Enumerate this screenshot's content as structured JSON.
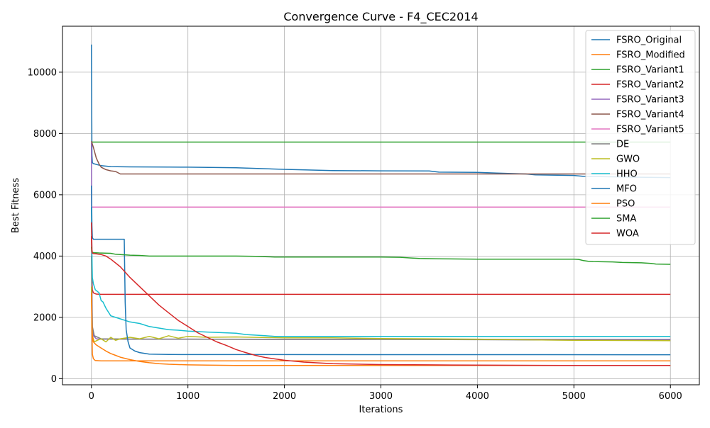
{
  "chart_data": {
    "type": "line",
    "title": "Convergence Curve - F4_CEC2014",
    "xlabel": "Iterations",
    "ylabel": "Best Fitness",
    "xlim": [
      -300,
      6300
    ],
    "ylim": [
      -200,
      11500
    ],
    "xticks": [
      0,
      1000,
      2000,
      3000,
      4000,
      5000,
      6000
    ],
    "yticks": [
      0,
      2000,
      4000,
      6000,
      8000,
      10000
    ],
    "grid": true,
    "legend_position": "top-right",
    "series": [
      {
        "name": "FSRO_Original",
        "color": "#1f77b4",
        "x": [
          0,
          5,
          10,
          20,
          50,
          100,
          200,
          400,
          800,
          1000,
          1500,
          2000,
          2500,
          3000,
          3500,
          3600,
          4000,
          4200,
          4500,
          4600,
          5000,
          5100,
          5500,
          6000
        ],
        "y": [
          10900,
          7300,
          7050,
          7020,
          6990,
          6950,
          6920,
          6910,
          6905,
          6900,
          6880,
          6830,
          6790,
          6780,
          6775,
          6740,
          6730,
          6710,
          6680,
          6650,
          6630,
          6600,
          6580,
          6560
        ]
      },
      {
        "name": "FSRO_Modified",
        "color": "#ff7f0e",
        "x": [
          0,
          5,
          10,
          20,
          40,
          100,
          200,
          6000
        ],
        "y": [
          3000,
          1500,
          800,
          650,
          590,
          580,
          580,
          580
        ]
      },
      {
        "name": "FSRO_Variant1",
        "color": "#2ca02c",
        "x": [
          0,
          6000
        ],
        "y": [
          7720,
          7720
        ]
      },
      {
        "name": "FSRO_Variant2",
        "color": "#d62728",
        "x": [
          0,
          5,
          10,
          20,
          50,
          100,
          6000
        ],
        "y": [
          4650,
          3300,
          2900,
          2800,
          2760,
          2750,
          2750
        ]
      },
      {
        "name": "FSRO_Variant3",
        "color": "#9467bd",
        "x": [
          0,
          5,
          10,
          20,
          50,
          100,
          300,
          6000
        ],
        "y": [
          7700,
          3000,
          1700,
          1400,
          1300,
          1290,
          1290,
          1280
        ]
      },
      {
        "name": "FSRO_Variant4",
        "color": "#8c564b",
        "x": [
          0,
          20,
          50,
          80,
          100,
          150,
          200,
          250,
          300,
          500,
          1000,
          6000
        ],
        "y": [
          7750,
          7550,
          7200,
          7000,
          6900,
          6820,
          6780,
          6760,
          6680,
          6680,
          6680,
          6680
        ]
      },
      {
        "name": "FSRO_Variant5",
        "color": "#e377c2",
        "x": [
          0,
          6000
        ],
        "y": [
          5600,
          5600
        ]
      },
      {
        "name": "DE",
        "color": "#7f7f7f",
        "x": [
          0,
          5,
          10,
          30,
          100,
          500,
          1000,
          2000,
          3000,
          4000,
          5000,
          6000
        ],
        "y": [
          4000,
          2500,
          1700,
          1400,
          1300,
          1290,
          1290,
          1280,
          1280,
          1270,
          1260,
          1260
        ]
      },
      {
        "name": "GWO",
        "color": "#bcbd22",
        "x": [
          0,
          5,
          10,
          30,
          60,
          100,
          150,
          200,
          250,
          300,
          400,
          500,
          600,
          700,
          800,
          900,
          1000,
          1200,
          1500,
          2000,
          2500,
          3000,
          3500,
          4000,
          5000,
          6000
        ],
        "y": [
          3000,
          1800,
          1400,
          1200,
          1250,
          1300,
          1200,
          1350,
          1250,
          1300,
          1350,
          1300,
          1380,
          1300,
          1400,
          1320,
          1380,
          1350,
          1360,
          1330,
          1330,
          1310,
          1300,
          1290,
          1250,
          1240
        ]
      },
      {
        "name": "HHO",
        "color": "#17becf",
        "x": [
          0,
          5,
          10,
          20,
          40,
          60,
          80,
          100,
          120,
          150,
          200,
          250,
          300,
          350,
          400,
          500,
          600,
          700,
          800,
          900,
          1000,
          1200,
          1500,
          1600,
          1800,
          1900,
          6000
        ],
        "y": [
          5600,
          4000,
          3300,
          3100,
          2900,
          2850,
          2800,
          2550,
          2500,
          2300,
          2050,
          2000,
          1950,
          1900,
          1850,
          1800,
          1700,
          1650,
          1600,
          1580,
          1550,
          1520,
          1480,
          1440,
          1400,
          1380,
          1380
        ]
      },
      {
        "name": "MFO",
        "color": "#1f77b4",
        "x": [
          0,
          5,
          10,
          20,
          50,
          100,
          200,
          300,
          340,
          350,
          360,
          380,
          400,
          450,
          500,
          600,
          800,
          1000,
          6000
        ],
        "y": [
          6300,
          5000,
          4600,
          4550,
          4550,
          4550,
          4550,
          4550,
          4550,
          2500,
          1600,
          1200,
          1000,
          900,
          850,
          800,
          790,
          785,
          780
        ]
      },
      {
        "name": "PSO",
        "color": "#ff7f0e",
        "x": [
          0,
          5,
          10,
          20,
          50,
          100,
          150,
          200,
          250,
          300,
          400,
          500,
          600,
          700,
          800,
          1000,
          1200,
          1500,
          2000,
          3000,
          6000
        ],
        "y": [
          2800,
          1800,
          1400,
          1200,
          1100,
          1000,
          900,
          820,
          760,
          700,
          620,
          560,
          520,
          490,
          470,
          450,
          440,
          430,
          430,
          430,
          430
        ]
      },
      {
        "name": "SMA",
        "color": "#2ca02c",
        "x": [
          0,
          5,
          10,
          30,
          80,
          200,
          250,
          300,
          400,
          500,
          600,
          1000,
          1500,
          1700,
          1800,
          1900,
          2000,
          3000,
          3200,
          3300,
          3400,
          3600,
          4000,
          5000,
          5050,
          5100,
          5150,
          5200,
          5400,
          5500,
          5700,
          5800,
          5850,
          6000
        ],
        "y": [
          4300,
          4150,
          4120,
          4110,
          4100,
          4090,
          4060,
          4050,
          4030,
          4020,
          4000,
          4000,
          4000,
          3990,
          3980,
          3970,
          3970,
          3970,
          3960,
          3940,
          3920,
          3910,
          3900,
          3900,
          3890,
          3850,
          3830,
          3820,
          3810,
          3790,
          3780,
          3760,
          3740,
          3730
        ]
      },
      {
        "name": "WOA",
        "color": "#d62728",
        "x": [
          0,
          5,
          10,
          20,
          50,
          100,
          150,
          200,
          300,
          400,
          500,
          600,
          700,
          800,
          900,
          1000,
          1100,
          1200,
          1300,
          1400,
          1500,
          1600,
          1700,
          1800,
          2000,
          2200,
          2500,
          3000,
          3500,
          4000,
          5000,
          6000
        ],
        "y": [
          5100,
          4200,
          4100,
          4080,
          4070,
          4050,
          4000,
          3900,
          3650,
          3300,
          3000,
          2700,
          2400,
          2150,
          1900,
          1700,
          1500,
          1350,
          1200,
          1080,
          950,
          850,
          760,
          690,
          600,
          540,
          490,
          460,
          450,
          440,
          430,
          430
        ]
      }
    ]
  }
}
